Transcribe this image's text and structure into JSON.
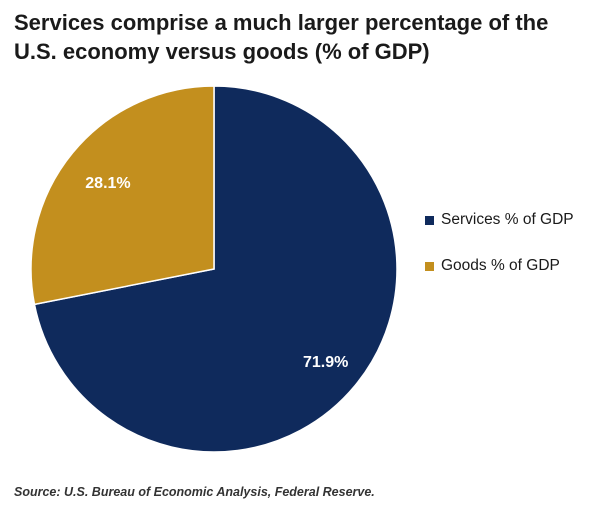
{
  "title": "Services comprise a much larger percentage of the U.S. economy versus goods (% of GDP)",
  "source": "Source: U.S. Bureau of Economic Analysis, Federal Reserve.",
  "chart_data": {
    "type": "pie",
    "title": "Services comprise a much larger percentage of the U.S. economy versus goods (% of GDP)",
    "categories": [
      "Services % of GDP",
      "Goods % of GDP"
    ],
    "values": [
      71.9,
      28.1
    ],
    "labels": [
      "71.9%",
      "28.1%"
    ],
    "colors": [
      "#0f2a5c",
      "#c38f1e"
    ],
    "legend_position": "right",
    "start_angle": "12 o'clock, clockwise"
  }
}
